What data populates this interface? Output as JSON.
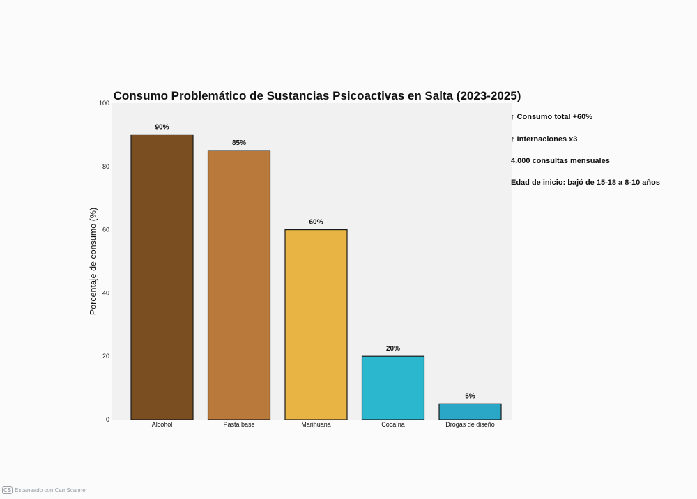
{
  "chart_data": {
    "type": "bar",
    "title": "Consumo Problemático de Sustancias Psicoactivas en Salta (2023-2025)",
    "xlabel": "",
    "ylabel": "Porcentaje de consumo (%)",
    "ylim": [
      0,
      100
    ],
    "yticks": [
      "0",
      "20",
      "40",
      "60",
      "80",
      "100"
    ],
    "categories": [
      "Alcohol",
      "Pasta base",
      "Marihuana",
      "Cocaína",
      "Drogas de diseño"
    ],
    "values": [
      90,
      85,
      60,
      20,
      5
    ],
    "data_labels": [
      "90%",
      "85%",
      "60%",
      "20%",
      "5%"
    ],
    "colors": [
      "#7b4e22",
      "#b8793a",
      "#e8b545",
      "#2bb8cf",
      "#2aa6c6"
    ],
    "grid": false,
    "annotations": [
      "↑ Consumo total +60%",
      "↑ Internaciones x3",
      "4.000 consultas mensuales",
      "Edad de inicio: bajó de 15-18 a 8-10 años"
    ]
  },
  "watermark": {
    "logo": "CS",
    "text": "Escaneado con CamScanner"
  }
}
